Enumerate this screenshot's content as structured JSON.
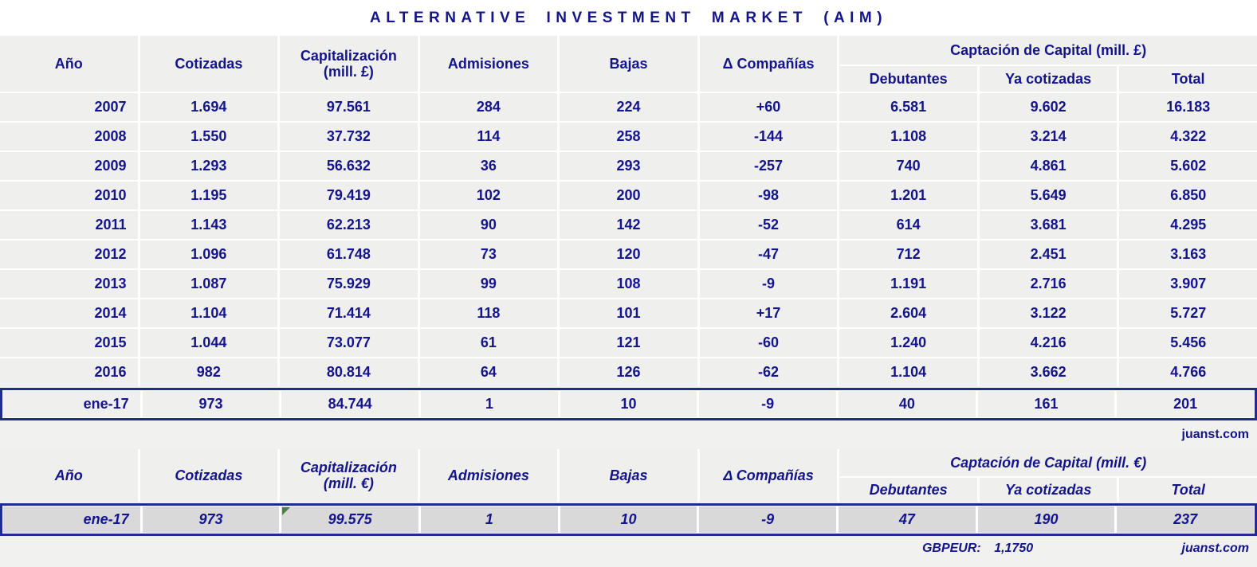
{
  "title": "ALTERNATIVE INVESTMENT MARKET (AIM)",
  "watermark_top": "juanst.com",
  "watermark_bottom": "juanst.com",
  "colors": {
    "navy_text": "#14148c",
    "navy_border": "#1e2d8c",
    "cell_bg": "#efefed",
    "page_bg": "#f1f1ef",
    "separator": "#ffffff",
    "highlight_row_bg": "#d9d9d9",
    "flag_green": "#4e7f3e"
  },
  "table_gbp": {
    "header": {
      "cols": [
        "Año",
        "Cotizadas",
        "Capitalización\n(mill. £)",
        "Admisiones",
        "Bajas",
        "Δ Compañías"
      ],
      "group": "Captación de Capital (mill. £)",
      "subcols": [
        "Debutantes",
        "Ya cotizadas",
        "Total"
      ]
    }
  },
  "table_eur": {
    "header": {
      "cols": [
        "Año",
        "Cotizadas",
        "Capitalización\n(mill. €)",
        "Admisiones",
        "Bajas",
        "Δ Compañías"
      ],
      "group": "Captación de Capital (mill. €)",
      "subcols": [
        "Debutantes",
        "Ya cotizadas",
        "Total"
      ]
    }
  },
  "footer": {
    "exchange_label": "GBPEUR:",
    "exchange_rate": "1,1750"
  },
  "chart_data": [
    {
      "type": "table",
      "title": "ALTERNATIVE INVESTMENT MARKET (AIM) — mill. £",
      "columns": [
        "Año",
        "Cotizadas",
        "Capitalización (mill. £)",
        "Admisiones",
        "Bajas",
        "Δ Compañías",
        "Captación de Capital Debutantes (mill. £)",
        "Captación de Capital Ya cotizadas (mill. £)",
        "Captación de Capital Total (mill. £)"
      ],
      "rows": [
        [
          "2007",
          "1.694",
          "97.561",
          "284",
          "224",
          "+60",
          "6.581",
          "9.602",
          "16.183"
        ],
        [
          "2008",
          "1.550",
          "37.732",
          "114",
          "258",
          "-144",
          "1.108",
          "3.214",
          "4.322"
        ],
        [
          "2009",
          "1.293",
          "56.632",
          "36",
          "293",
          "-257",
          "740",
          "4.861",
          "5.602"
        ],
        [
          "2010",
          "1.195",
          "79.419",
          "102",
          "200",
          "-98",
          "1.201",
          "5.649",
          "6.850"
        ],
        [
          "2011",
          "1.143",
          "62.213",
          "90",
          "142",
          "-52",
          "614",
          "3.681",
          "4.295"
        ],
        [
          "2012",
          "1.096",
          "61.748",
          "73",
          "120",
          "-47",
          "712",
          "2.451",
          "3.163"
        ],
        [
          "2013",
          "1.087",
          "75.929",
          "99",
          "108",
          "-9",
          "1.191",
          "2.716",
          "3.907"
        ],
        [
          "2014",
          "1.104",
          "71.414",
          "118",
          "101",
          "+17",
          "2.604",
          "3.122",
          "5.727"
        ],
        [
          "2015",
          "1.044",
          "73.077",
          "61",
          "121",
          "-60",
          "1.240",
          "4.216",
          "5.456"
        ],
        [
          "2016",
          "982",
          "80.814",
          "64",
          "126",
          "-62",
          "1.104",
          "3.662",
          "4.766"
        ]
      ],
      "highlight_row": [
        "ene-17",
        "973",
        "84.744",
        "1",
        "10",
        "-9",
        "40",
        "161",
        "201"
      ]
    },
    {
      "type": "table",
      "title": "AIM ene-17 converted to mill. € (GBPEUR: 1,1750)",
      "columns": [
        "Año",
        "Cotizadas",
        "Capitalización (mill. €)",
        "Admisiones",
        "Bajas",
        "Δ Compañías",
        "Captación de Capital Debutantes (mill. €)",
        "Captación de Capital Ya cotizadas (mill. €)",
        "Captación de Capital Total (mill. €)"
      ],
      "rows": [],
      "highlight_row": [
        "ene-17",
        "973",
        "99.575",
        "1",
        "10",
        "-9",
        "47",
        "190",
        "237"
      ]
    }
  ]
}
